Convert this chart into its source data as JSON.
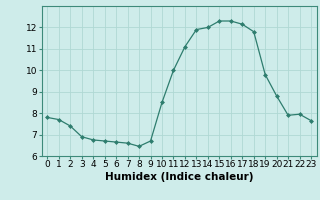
{
  "x": [
    0,
    1,
    2,
    3,
    4,
    5,
    6,
    7,
    8,
    9,
    10,
    11,
    12,
    13,
    14,
    15,
    16,
    17,
    18,
    19,
    20,
    21,
    22,
    23
  ],
  "y": [
    7.8,
    7.7,
    7.4,
    6.9,
    6.75,
    6.7,
    6.65,
    6.6,
    6.45,
    6.7,
    8.5,
    10.0,
    11.1,
    11.9,
    12.0,
    12.3,
    12.3,
    12.15,
    11.8,
    9.8,
    8.8,
    7.9,
    7.95,
    7.65
  ],
  "line_color": "#2e7d6e",
  "marker": "D",
  "marker_size": 2.0,
  "bg_color": "#ceecea",
  "grid_color": "#b0d8d4",
  "xlabel": "Humidex (Indice chaleur)",
  "ylim": [
    6,
    13
  ],
  "xlim": [
    -0.5,
    23.5
  ],
  "yticks": [
    6,
    7,
    8,
    9,
    10,
    11,
    12
  ],
  "xticks": [
    0,
    1,
    2,
    3,
    4,
    5,
    6,
    7,
    8,
    9,
    10,
    11,
    12,
    13,
    14,
    15,
    16,
    17,
    18,
    19,
    20,
    21,
    22,
    23
  ],
  "xlabel_fontsize": 7.5,
  "tick_fontsize": 6.5,
  "spine_color": "#3d8a7a"
}
